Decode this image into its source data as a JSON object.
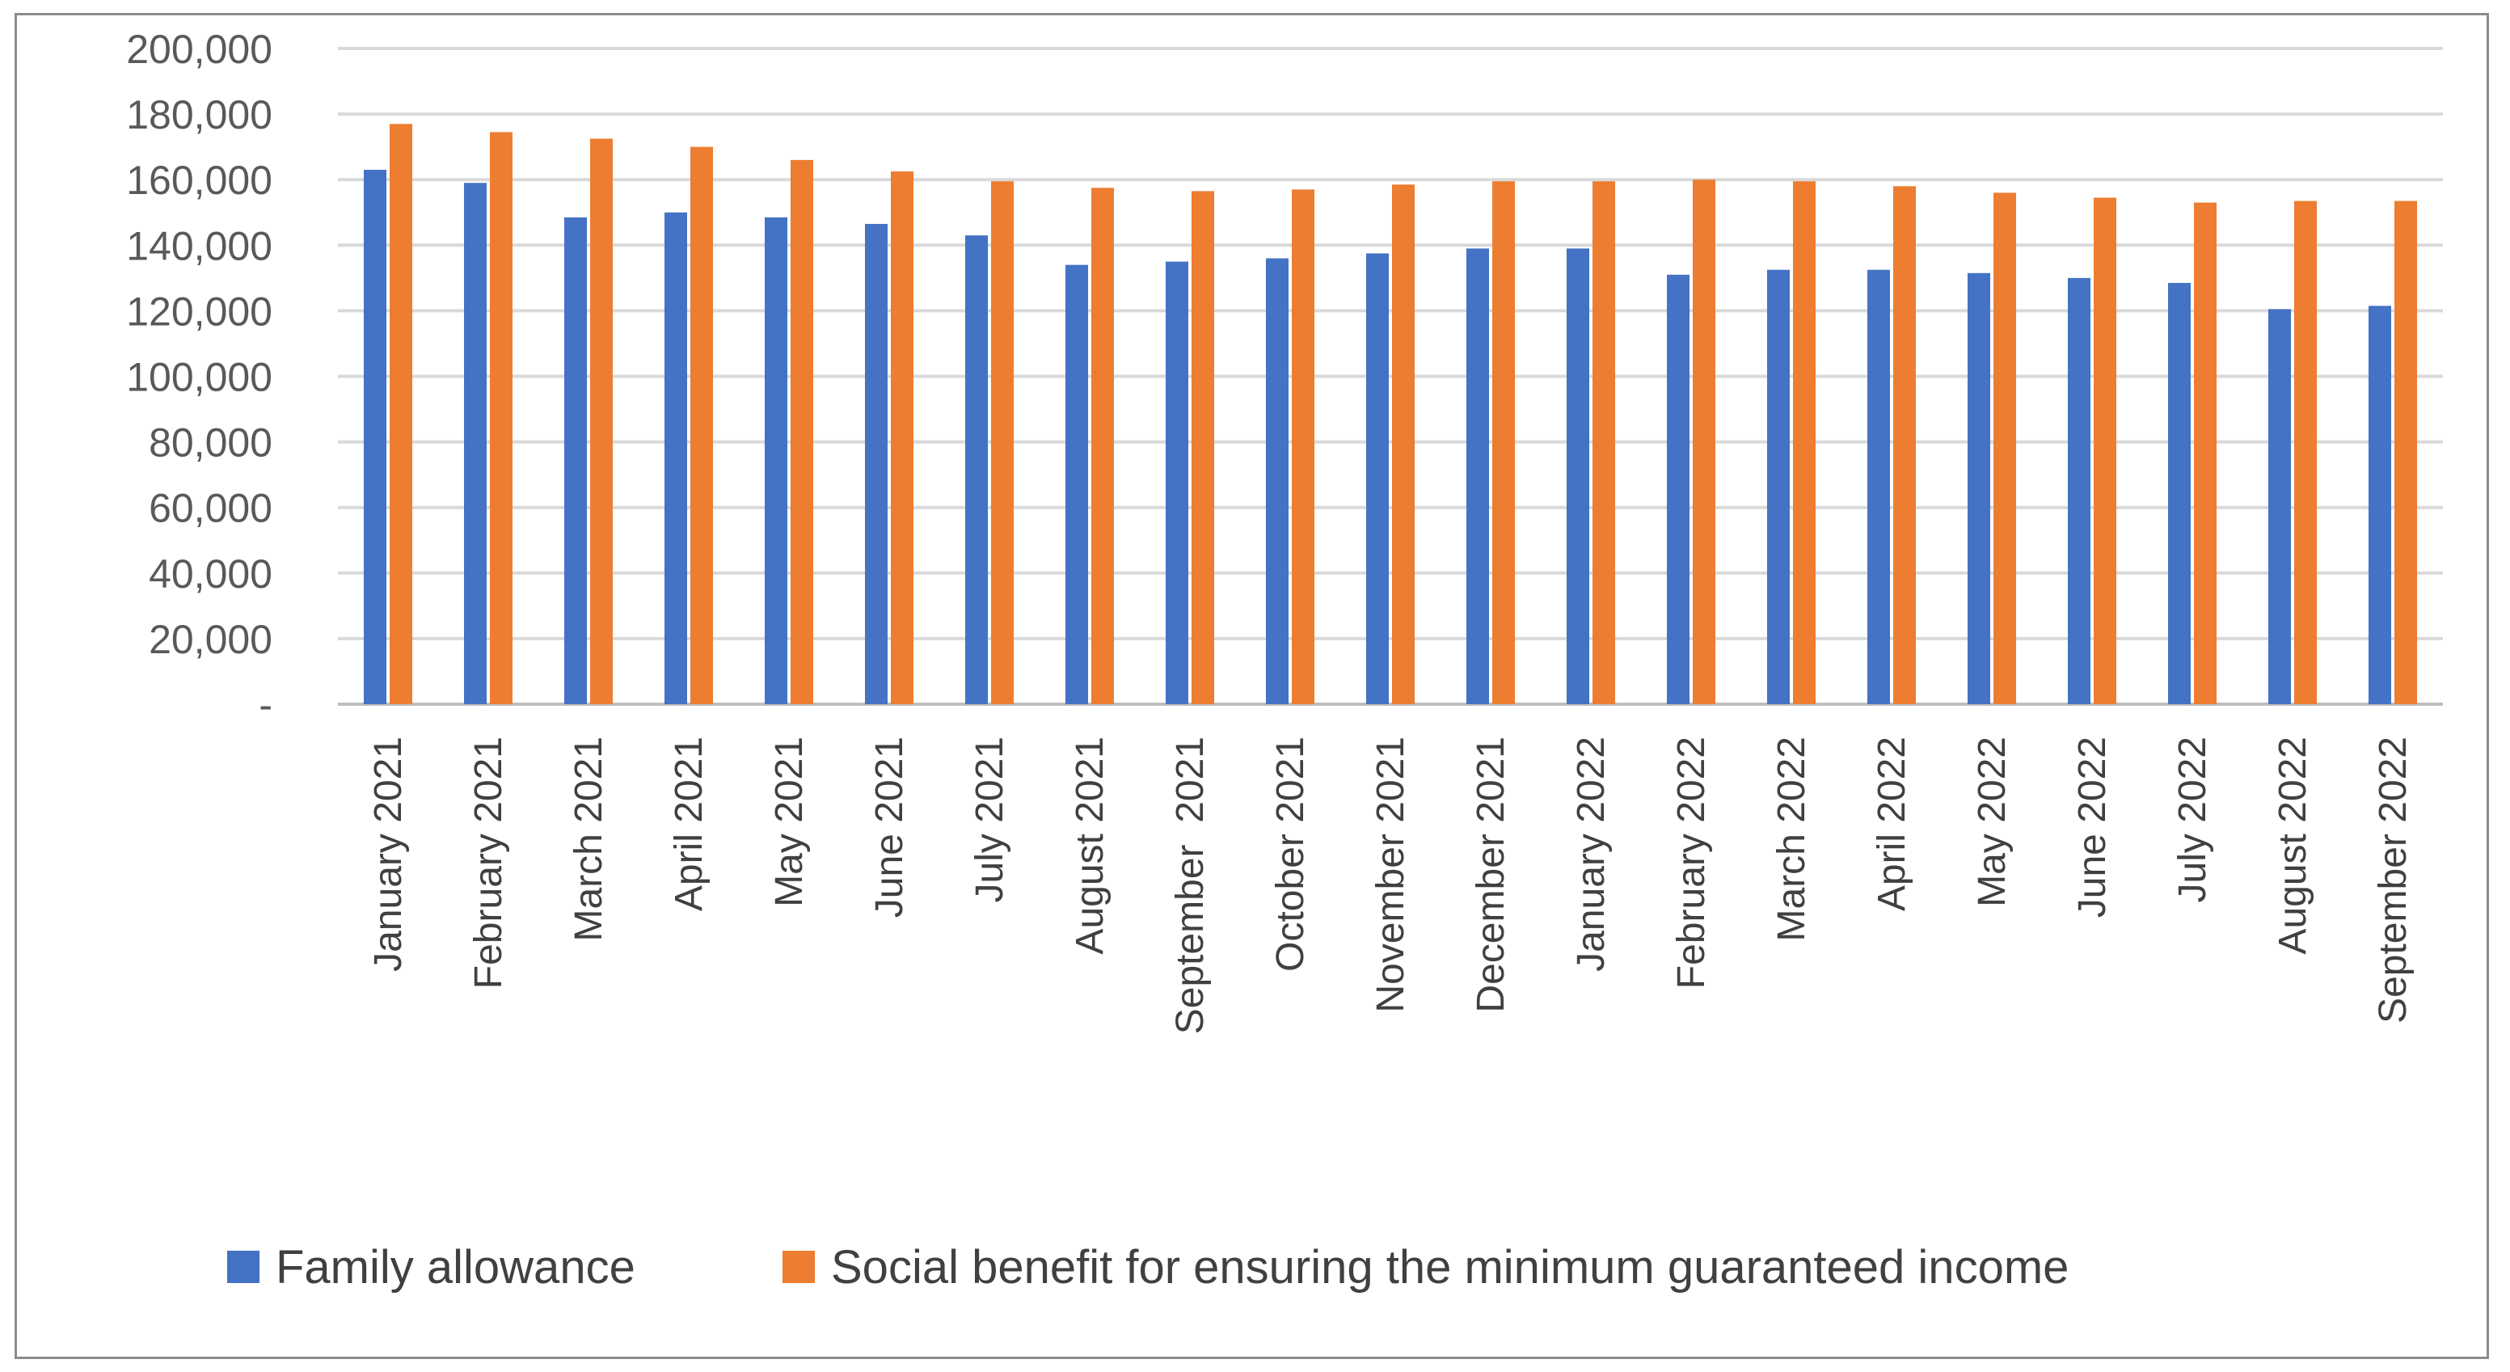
{
  "chart_data": {
    "type": "bar",
    "categories": [
      "January 2021",
      "February 2021",
      "March 2021",
      "April 2021",
      "May 2021",
      "June 2021",
      "July 2021",
      "August 2021",
      "September  2021",
      "October 2021",
      "November 2021",
      "December 2021",
      "January 2022",
      "February 2022",
      "March 2022",
      "April 2022",
      "May 2022",
      "June 2022",
      "July 2022",
      "August 2022",
      "September 2022"
    ],
    "series": [
      {
        "name": "Family allowance",
        "color": "#4472c4",
        "values": [
          163000,
          159000,
          148500,
          150000,
          148500,
          146500,
          143000,
          134000,
          135000,
          136000,
          137500,
          139000,
          139000,
          131000,
          132500,
          132500,
          131500,
          130000,
          128500,
          120500,
          121500
        ]
      },
      {
        "name": "Social benefit for ensuring the minimum guaranteed income",
        "color": "#ed7d31",
        "values": [
          177000,
          174500,
          172500,
          170000,
          166000,
          162500,
          159500,
          157500,
          156500,
          157000,
          158500,
          159500,
          159500,
          160000,
          159500,
          158000,
          156000,
          154500,
          153000,
          153500,
          153500
        ]
      }
    ],
    "ylim": [
      0,
      200000
    ],
    "yticks": [
      0,
      20000,
      40000,
      60000,
      80000,
      100000,
      120000,
      140000,
      160000,
      180000,
      200000
    ],
    "ytick_labels": [
      "-",
      "20,000",
      "40,000",
      "60,000",
      "80,000",
      "100,000",
      "120,000",
      "140,000",
      "160,000",
      "180,000",
      "200,000"
    ],
    "grid": true,
    "gridline_color": "#d9d9d9",
    "legend_position": "bottom"
  }
}
